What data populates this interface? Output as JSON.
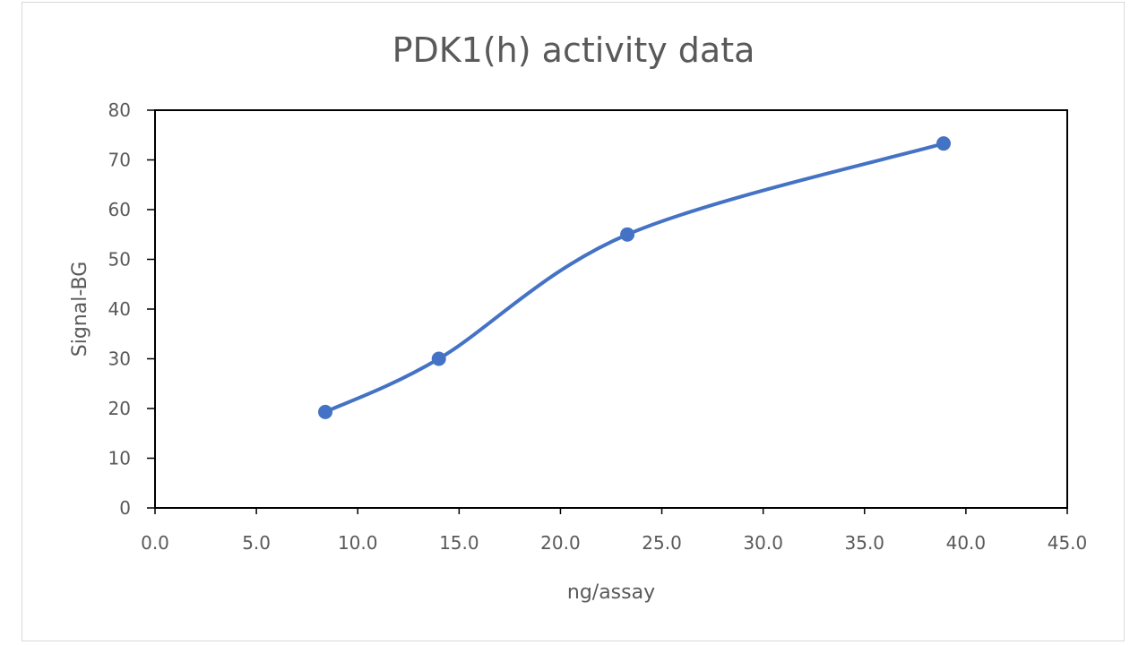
{
  "chart_data": {
    "type": "line",
    "title": "PDK1(h) activity data",
    "xlabel": "ng/assay",
    "ylabel": "Signal-BG",
    "xlim": [
      0,
      45
    ],
    "ylim": [
      0,
      80
    ],
    "x_ticks": [
      "0.0",
      "5.0",
      "10.0",
      "15.0",
      "20.0",
      "25.0",
      "30.0",
      "35.0",
      "40.0",
      "45.0"
    ],
    "y_ticks": [
      "0",
      "10",
      "20",
      "30",
      "40",
      "50",
      "60",
      "70",
      "80"
    ],
    "grid": false,
    "legend": null,
    "smoothed": true,
    "series": [
      {
        "name": "Signal-BG",
        "color": "#4472c4",
        "x": [
          8.4,
          14.0,
          23.3,
          38.9
        ],
        "values": [
          19.3,
          30.0,
          55.0,
          73.3
        ]
      }
    ]
  },
  "colors": {
    "series": "#4472c4",
    "text": "#595959",
    "axis": "#000000",
    "frame": "#d9d9d9"
  }
}
